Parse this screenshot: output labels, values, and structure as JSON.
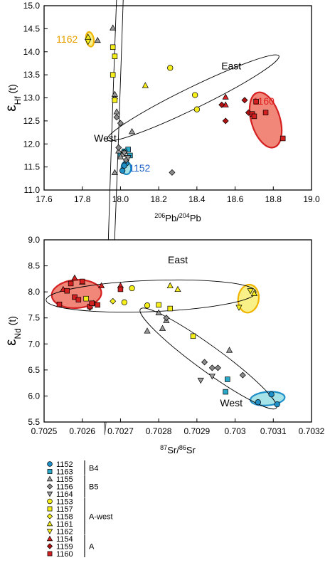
{
  "colors": {
    "blue": "#1f8fc8",
    "teal": "#2aa8c9",
    "gray": "#9a9a9a",
    "darkgray": "#8a8a8a",
    "yellow": "#f5ee1a",
    "orange": "#f0b400",
    "red": "#d42020",
    "darkred": "#b01010",
    "red_fill": "#f07a6a",
    "yellow_fill": "#f8f07a",
    "teal_fill": "#9be0e6"
  },
  "chart_data": [
    {
      "type": "scatter",
      "xlabel_pre": "206",
      "xlabel_mid": "Pb/",
      "xlabel_sup": "204",
      "xlabel_post": "Pb",
      "ylabel_main": "ε",
      "ylabel_sub": "Hf",
      "ylabel_post": " (t)",
      "xlim": [
        17.6,
        19.0
      ],
      "ylim": [
        11.0,
        15.0
      ],
      "xticks": [
        "17.6",
        "17.8",
        "18.0",
        "18.2",
        "18.4",
        "18.6",
        "18.8",
        "19.0"
      ],
      "yticks": [
        "11.0",
        "11.5",
        "12.0",
        "12.5",
        "13.0",
        "13.5",
        "14.0",
        "14.5",
        "15.0"
      ],
      "annotations": [
        {
          "text": "East",
          "x": 18.58,
          "y": 13.62,
          "color": "#000"
        },
        {
          "text": "West",
          "x": 17.92,
          "y": 12.05,
          "color": "#000"
        },
        {
          "text": "1162",
          "x": 17.72,
          "y": 14.2,
          "color": "#e8a000"
        },
        {
          "text": "1160",
          "x": 18.75,
          "y": 12.85,
          "color": "#e02020"
        },
        {
          "text": "1152",
          "x": 18.1,
          "y": 11.4,
          "color": "#1f60c8"
        }
      ],
      "series": [
        {
          "name": "1152",
          "marker": "circle",
          "color": "#1f8fc8",
          "points": [
            [
              18.01,
              11.42
            ],
            [
              18.03,
              11.58
            ],
            [
              18.02,
              11.53
            ]
          ]
        },
        {
          "name": "1163",
          "marker": "square",
          "color": "#2aa8c9",
          "points": [
            [
              18.04,
              11.88
            ],
            [
              18.05,
              11.75
            ],
            [
              18.02,
              11.84
            ],
            [
              18.0,
              11.78
            ]
          ]
        },
        {
          "name": "1155",
          "marker": "triangle",
          "color": "#9a9a9a",
          "points": [
            [
              17.96,
              14.52
            ],
            [
              17.88,
              14.25
            ],
            [
              17.97,
              13.08
            ],
            [
              17.98,
              12.7
            ],
            [
              18.06,
              12.27
            ],
            [
              17.99,
              11.85
            ],
            [
              18.01,
              11.78
            ],
            [
              17.97,
              11.38
            ],
            [
              18.0,
              11.72
            ]
          ]
        },
        {
          "name": "1156",
          "marker": "diamond",
          "color": "#8a8a8a",
          "points": [
            [
              17.97,
              12.98
            ],
            [
              18.0,
              12.45
            ],
            [
              17.98,
              12.58
            ],
            [
              18.27,
              11.38
            ],
            [
              17.99,
              11.92
            ],
            [
              18.03,
              11.65
            ],
            [
              18.02,
              11.82
            ]
          ]
        },
        {
          "name": "1164",
          "marker": "tri-down",
          "color": "#9a9a9a",
          "points": [
            [
              18.04,
              11.7
            ],
            [
              18.02,
              11.8
            ]
          ]
        },
        {
          "name": "1153",
          "marker": "circle",
          "color": "#f5ee1a",
          "points": [
            [
              18.26,
              13.65
            ],
            [
              18.39,
              13.06
            ],
            [
              18.4,
              12.75
            ]
          ]
        },
        {
          "name": "1157",
          "marker": "square",
          "color": "#f5ee1a",
          "points": [
            [
              17.96,
              14.1
            ],
            [
              17.97,
              13.9
            ],
            [
              17.96,
              13.5
            ],
            [
              17.97,
              12.95
            ]
          ]
        },
        {
          "name": "1158",
          "marker": "diamond",
          "color": "#f5ee1a",
          "points": []
        },
        {
          "name": "1161",
          "marker": "triangle",
          "color": "#f5ee1a",
          "points": [
            [
              18.13,
              13.27
            ],
            [
              17.83,
              14.32
            ]
          ]
        },
        {
          "name": "1162",
          "marker": "tri-down",
          "color": "#f5ee1a",
          "points": [
            [
              17.83,
              14.22
            ]
          ]
        },
        {
          "name": "1154",
          "marker": "triangle",
          "color": "#d42020",
          "points": [
            [
              18.55,
              13.02
            ],
            [
              18.55,
              12.85
            ]
          ]
        },
        {
          "name": "1159",
          "marker": "diamond",
          "color": "#b01010",
          "points": [
            [
              18.53,
              12.85
            ],
            [
              18.55,
              12.5
            ],
            [
              18.65,
              12.95
            ],
            [
              18.67,
              12.68
            ]
          ]
        },
        {
          "name": "1160",
          "marker": "square",
          "color": "#d42020",
          "points": [
            [
              18.69,
              12.65
            ],
            [
              18.7,
              12.6
            ],
            [
              18.71,
              12.92
            ],
            [
              18.76,
              12.68
            ],
            [
              18.85,
              12.12
            ]
          ]
        }
      ],
      "fields": [
        {
          "type": "outline",
          "cx": 18.38,
          "cy": 13.0,
          "rx": 0.5,
          "ry": 0.23,
          "angle": -26
        },
        {
          "type": "outline",
          "cx": 17.98,
          "cy": 13.15,
          "rx": 1.8,
          "ry": 0.075,
          "angle": -88
        },
        {
          "type": "fill",
          "cx": 18.76,
          "cy": 12.52,
          "rx": 0.075,
          "ry": 0.62,
          "angle": -17,
          "color": "red_fill",
          "stroke": "red"
        },
        {
          "type": "fill",
          "cx": 17.84,
          "cy": 14.27,
          "rx": 0.02,
          "ry": 0.16,
          "angle": -10,
          "color": "yellow_fill",
          "stroke": "orange"
        },
        {
          "type": "fill",
          "cx": 18.03,
          "cy": 11.48,
          "rx": 0.025,
          "ry": 0.14,
          "angle": -5,
          "color": "teal_fill",
          "stroke": "blue"
        }
      ]
    },
    {
      "type": "scatter",
      "xlabel_pre": "87",
      "xlabel_mid": "Sr/",
      "xlabel_sup": "86",
      "xlabel_post": "Sr",
      "ylabel_main": "ε",
      "ylabel_sub": "Nd",
      "ylabel_post": " (t)",
      "xlim": [
        0.7025,
        0.7032
      ],
      "ylim": [
        5.5,
        9.0
      ],
      "xticks": [
        "0.7025",
        "0.7026",
        "0.7027",
        "0.7028",
        "0.7029",
        "0.703",
        "0.7031",
        "0.7032"
      ],
      "yticks": [
        "5.5",
        "6.0",
        "6.5",
        "7.0",
        "7.5",
        "8.0",
        "8.5",
        "9.0"
      ],
      "annotations": [
        {
          "text": "East",
          "x": 0.70285,
          "y": 8.55,
          "color": "#000"
        },
        {
          "text": "West",
          "x": 0.70299,
          "y": 5.8,
          "color": "#000"
        }
      ],
      "series": [
        {
          "name": "1152",
          "marker": "circle",
          "color": "#1f8fc8",
          "points": [
            [
              0.70306,
              5.88
            ],
            [
              0.703095,
              6.03
            ],
            [
              0.70311,
              5.84
            ]
          ]
        },
        {
          "name": "1163",
          "marker": "square",
          "color": "#2aa8c9",
          "points": [
            [
              0.70298,
              6.32
            ],
            [
              0.702975,
              6.08
            ]
          ]
        },
        {
          "name": "1155",
          "marker": "triangle",
          "color": "#9a9a9a",
          "points": [
            [
              0.702985,
              6.88
            ],
            [
              0.70277,
              7.25
            ],
            [
              0.70281,
              7.3
            ],
            [
              0.70282,
              7.45
            ],
            [
              0.7028,
              7.6
            ]
          ]
        },
        {
          "name": "1156",
          "marker": "diamond",
          "color": "#8a8a8a",
          "points": [
            [
              0.70292,
              6.65
            ],
            [
              0.70294,
              6.54
            ],
            [
              0.702955,
              6.54
            ],
            [
              0.70302,
              6.4
            ],
            [
              0.70282,
              7.5
            ]
          ]
        },
        {
          "name": "1164",
          "marker": "tri-down",
          "color": "#9a9a9a",
          "points": [
            [
              0.70291,
              6.3
            ],
            [
              0.70294,
              6.38
            ]
          ]
        },
        {
          "name": "1153",
          "marker": "circle",
          "color": "#f5ee1a",
          "points": [
            [
              0.70273,
              8.07
            ],
            [
              0.70271,
              7.8
            ],
            [
              0.70277,
              7.74
            ]
          ]
        },
        {
          "name": "1157",
          "marker": "square",
          "color": "#f5ee1a",
          "points": [
            [
              0.70261,
              7.87
            ],
            [
              0.7028,
              7.75
            ],
            [
              0.70283,
              7.68
            ],
            [
              0.70289,
              7.15
            ]
          ]
        },
        {
          "name": "1158",
          "marker": "diamond",
          "color": "#f5ee1a",
          "points": [
            [
              0.70268,
              7.82
            ]
          ]
        },
        {
          "name": "1161",
          "marker": "triangle",
          "color": "#f5ee1a",
          "points": [
            [
              0.70283,
              8.12
            ],
            [
              0.70285,
              8.05
            ],
            [
              0.70305,
              7.97
            ]
          ]
        },
        {
          "name": "1162",
          "marker": "tri-down",
          "color": "#f5ee1a",
          "points": [
            [
              0.70301,
              7.7
            ],
            [
              0.70304,
              8.02
            ]
          ]
        },
        {
          "name": "1154",
          "marker": "triangle",
          "color": "#d42020",
          "points": [
            [
              0.70258,
              8.27
            ],
            [
              0.7026,
              8.19
            ],
            [
              0.70265,
              8.12
            ],
            [
              0.7027,
              8.12
            ],
            [
              0.70255,
              8.05
            ]
          ]
        },
        {
          "name": "1159",
          "marker": "diamond",
          "color": "#b01010",
          "points": [
            [
              0.70262,
              7.7
            ],
            [
              0.70263,
              7.78
            ]
          ]
        },
        {
          "name": "1160",
          "marker": "square",
          "color": "#d42020",
          "points": [
            [
              0.70254,
              7.76
            ],
            [
              0.70256,
              8.02
            ],
            [
              0.70257,
              8.16
            ],
            [
              0.70258,
              7.9
            ],
            [
              0.70259,
              7.85
            ],
            [
              0.7026,
              8.2
            ],
            [
              0.70262,
              7.72
            ],
            [
              0.702625,
              7.78
            ],
            [
              0.70264,
              7.75
            ],
            [
              0.7027,
              8.05
            ]
          ]
        }
      ],
      "fields": [
        {
          "type": "outline",
          "cx": 0.70278,
          "cy": 7.92,
          "rx": 0.000275,
          "ry": 0.3,
          "angle": -2.2
        },
        {
          "type": "outline",
          "cx": 0.70293,
          "cy": 6.72,
          "rx": 0.00022,
          "ry": 0.24,
          "angle": 36
        },
        {
          "type": "fill",
          "cx": 0.702585,
          "cy": 7.96,
          "rx": 6.5e-05,
          "ry": 0.27,
          "angle": -4,
          "color": "red_fill",
          "stroke": "red"
        },
        {
          "type": "fill",
          "cx": 0.703035,
          "cy": 7.87,
          "rx": 2.7e-05,
          "ry": 0.27,
          "angle": 8,
          "color": "yellow_fill",
          "stroke": "orange"
        },
        {
          "type": "fill",
          "cx": 0.703085,
          "cy": 5.95,
          "rx": 4.5e-05,
          "ry": 0.13,
          "angle": -5,
          "color": "teal_fill",
          "stroke": "blue"
        }
      ]
    }
  ],
  "legend": {
    "groups": [
      {
        "label": "B4",
        "items": [
          {
            "name": "1152",
            "marker": "circle",
            "color": "#1f8fc8"
          },
          {
            "name": "1163",
            "marker": "square",
            "color": "#2aa8c9"
          }
        ]
      },
      {
        "label": "B5",
        "items": [
          {
            "name": "1155",
            "marker": "triangle",
            "color": "#9a9a9a"
          },
          {
            "name": "1156",
            "marker": "diamond",
            "color": "#8a8a8a"
          },
          {
            "name": "1164",
            "marker": "tri-down",
            "color": "#9a9a9a"
          }
        ]
      },
      {
        "label": "A-west",
        "items": [
          {
            "name": "1153",
            "marker": "circle",
            "color": "#f5ee1a"
          },
          {
            "name": "1157",
            "marker": "square",
            "color": "#f5ee1a"
          },
          {
            "name": "1158",
            "marker": "diamond",
            "color": "#f5ee1a"
          },
          {
            "name": "1161",
            "marker": "triangle",
            "color": "#f5ee1a"
          },
          {
            "name": "1162",
            "marker": "tri-down",
            "color": "#f5ee1a"
          }
        ]
      },
      {
        "label": "A",
        "items": [
          {
            "name": "1154",
            "marker": "triangle",
            "color": "#d42020"
          },
          {
            "name": "1159",
            "marker": "diamond",
            "color": "#b01010"
          },
          {
            "name": "1160",
            "marker": "square",
            "color": "#d42020"
          }
        ]
      }
    ]
  }
}
